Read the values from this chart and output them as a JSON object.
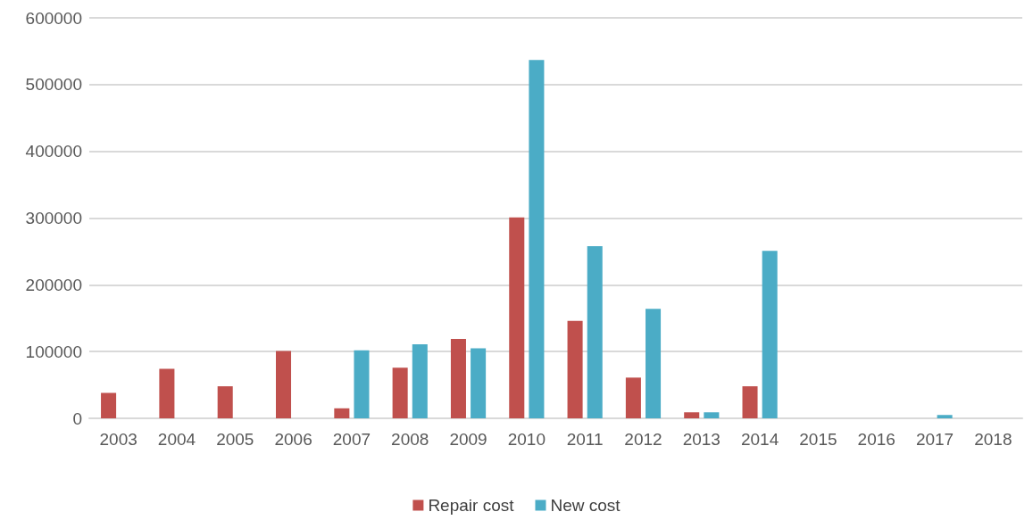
{
  "chart_data": {
    "type": "bar",
    "categories": [
      "2003",
      "2004",
      "2005",
      "2006",
      "2007",
      "2008",
      "2009",
      "2010",
      "2011",
      "2012",
      "2013",
      "2014",
      "2015",
      "2016",
      "2017",
      "2018"
    ],
    "series": [
      {
        "name": "Repair cost",
        "color": "#c0504d",
        "values": [
          38000,
          74000,
          48000,
          101000,
          15000,
          76000,
          119000,
          301000,
          146000,
          61000,
          9000,
          48000,
          null,
          null,
          null,
          null
        ]
      },
      {
        "name": "New cost",
        "color": "#4bacc6",
        "values": [
          null,
          null,
          null,
          null,
          102000,
          111000,
          105000,
          537000,
          258000,
          164000,
          9000,
          251000,
          null,
          null,
          5000,
          null
        ]
      }
    ],
    "ylim": [
      0,
      600000
    ],
    "yticks": [
      0,
      100000,
      200000,
      300000,
      400000,
      500000,
      600000
    ],
    "grid": "y",
    "legend": "bottom"
  }
}
